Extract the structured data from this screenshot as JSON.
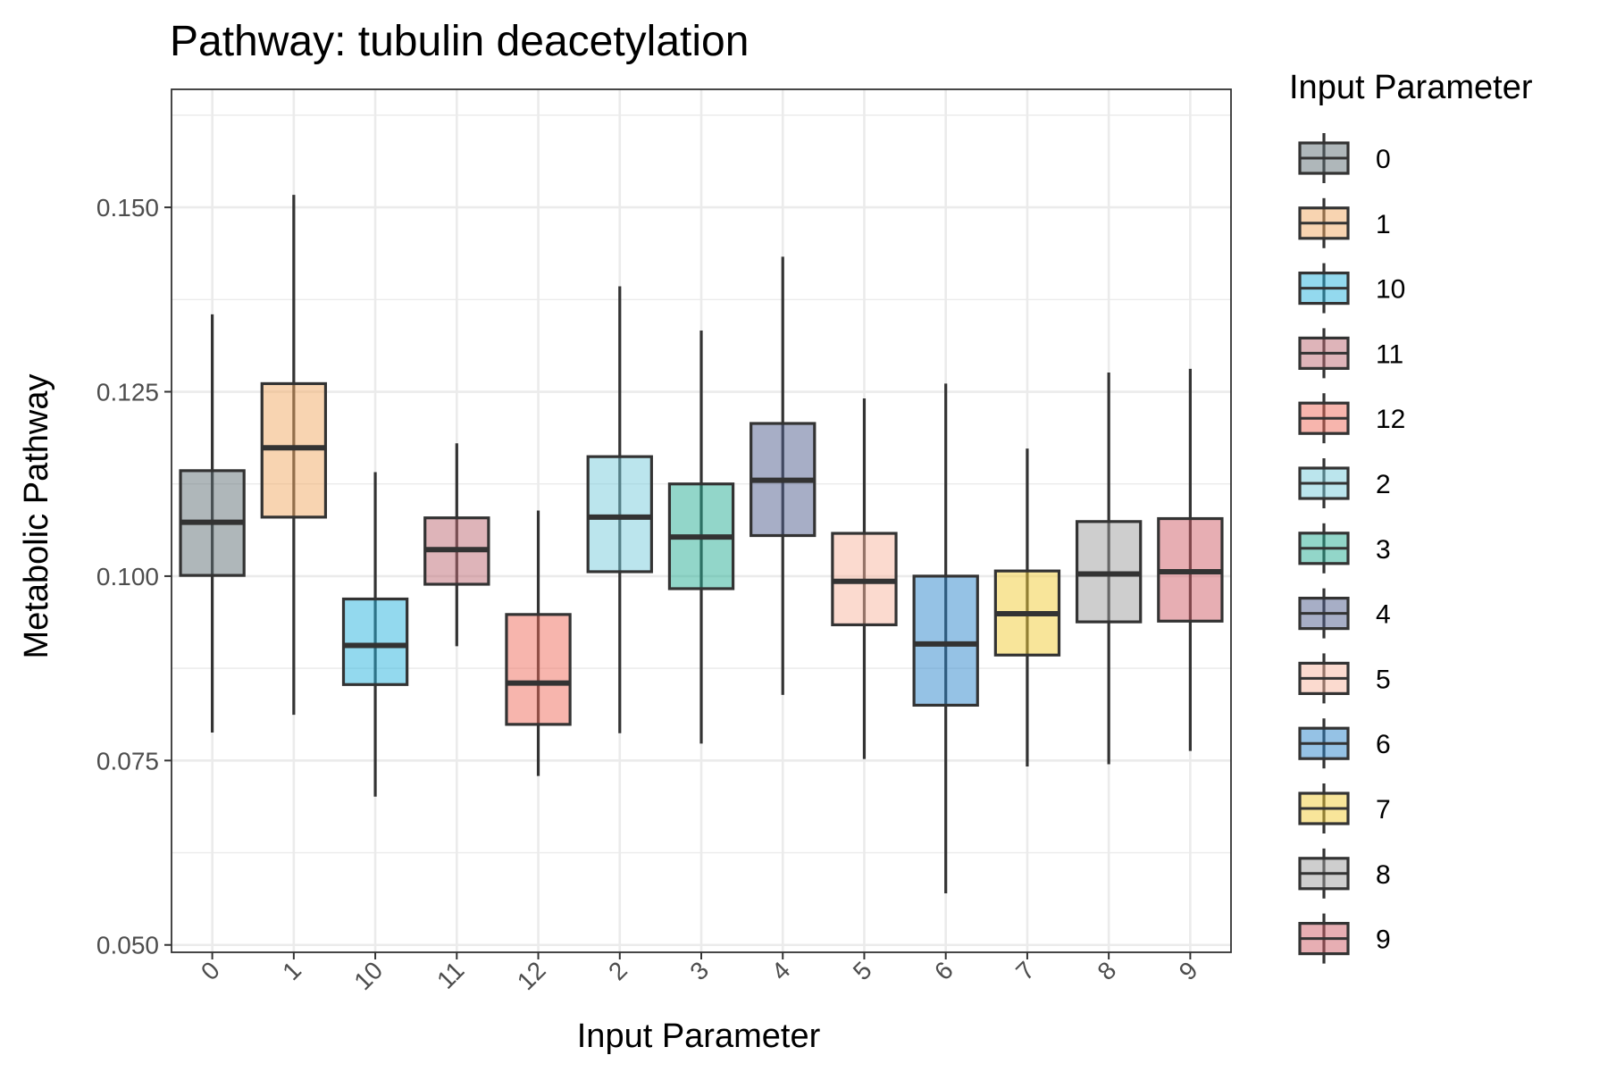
{
  "chart_data": {
    "type": "boxplot",
    "title": "Pathway: tubulin deacetylation",
    "xlabel": "Input Parameter",
    "ylabel": "Metabolic Pathway",
    "ylim": [
      0.049,
      0.166
    ],
    "yticks": [
      0.05,
      0.075,
      0.1,
      0.125,
      0.15
    ],
    "ytick_labels": [
      "0.050",
      "0.075",
      "0.100",
      "0.125",
      "0.150"
    ],
    "grid": true,
    "box_opacity": 0.5,
    "legend": {
      "title": "Input Parameter",
      "position": "right"
    },
    "categories": [
      "0",
      "1",
      "10",
      "11",
      "12",
      "2",
      "3",
      "4",
      "5",
      "6",
      "7",
      "8",
      "9"
    ],
    "colors": [
      "#5f6f75",
      "#f2a963",
      "#27b3de",
      "#bd6a74",
      "#ef6b5b",
      "#78cbdc",
      "#25ae94",
      "#4f5e8d",
      "#f7b5a0",
      "#2b85cc",
      "#f2cc36",
      "#9e9e9e",
      "#d05e67"
    ],
    "boxes": [
      {
        "category": "0",
        "min": 0.0788,
        "q1": 0.1001,
        "median": 0.1073,
        "q3": 0.1143,
        "max": 0.1355
      },
      {
        "category": "1",
        "min": 0.0812,
        "q1": 0.108,
        "median": 0.1174,
        "q3": 0.1261,
        "max": 0.1517
      },
      {
        "category": "10",
        "min": 0.0701,
        "q1": 0.0853,
        "median": 0.0906,
        "q3": 0.0969,
        "max": 0.1141
      },
      {
        "category": "11",
        "min": 0.0905,
        "q1": 0.0989,
        "median": 0.1036,
        "q3": 0.1079,
        "max": 0.118
      },
      {
        "category": "12",
        "min": 0.0729,
        "q1": 0.0799,
        "median": 0.0855,
        "q3": 0.0948,
        "max": 0.1089
      },
      {
        "category": "2",
        "min": 0.0787,
        "q1": 0.1006,
        "median": 0.108,
        "q3": 0.1162,
        "max": 0.1393
      },
      {
        "category": "3",
        "min": 0.0773,
        "q1": 0.0983,
        "median": 0.1053,
        "q3": 0.1125,
        "max": 0.1333
      },
      {
        "category": "4",
        "min": 0.0839,
        "q1": 0.1055,
        "median": 0.113,
        "q3": 0.1207,
        "max": 0.1433
      },
      {
        "category": "5",
        "min": 0.0752,
        "q1": 0.0934,
        "median": 0.0993,
        "q3": 0.1058,
        "max": 0.1241
      },
      {
        "category": "6",
        "min": 0.057,
        "q1": 0.0825,
        "median": 0.0908,
        "q3": 0.1,
        "max": 0.1261
      },
      {
        "category": "7",
        "min": 0.0742,
        "q1": 0.0893,
        "median": 0.0949,
        "q3": 0.1007,
        "max": 0.1173
      },
      {
        "category": "8",
        "min": 0.0745,
        "q1": 0.0938,
        "median": 0.1003,
        "q3": 0.1074,
        "max": 0.1276
      },
      {
        "category": "9",
        "min": 0.0763,
        "q1": 0.0939,
        "median": 0.1006,
        "q3": 0.1078,
        "max": 0.1281
      }
    ]
  }
}
